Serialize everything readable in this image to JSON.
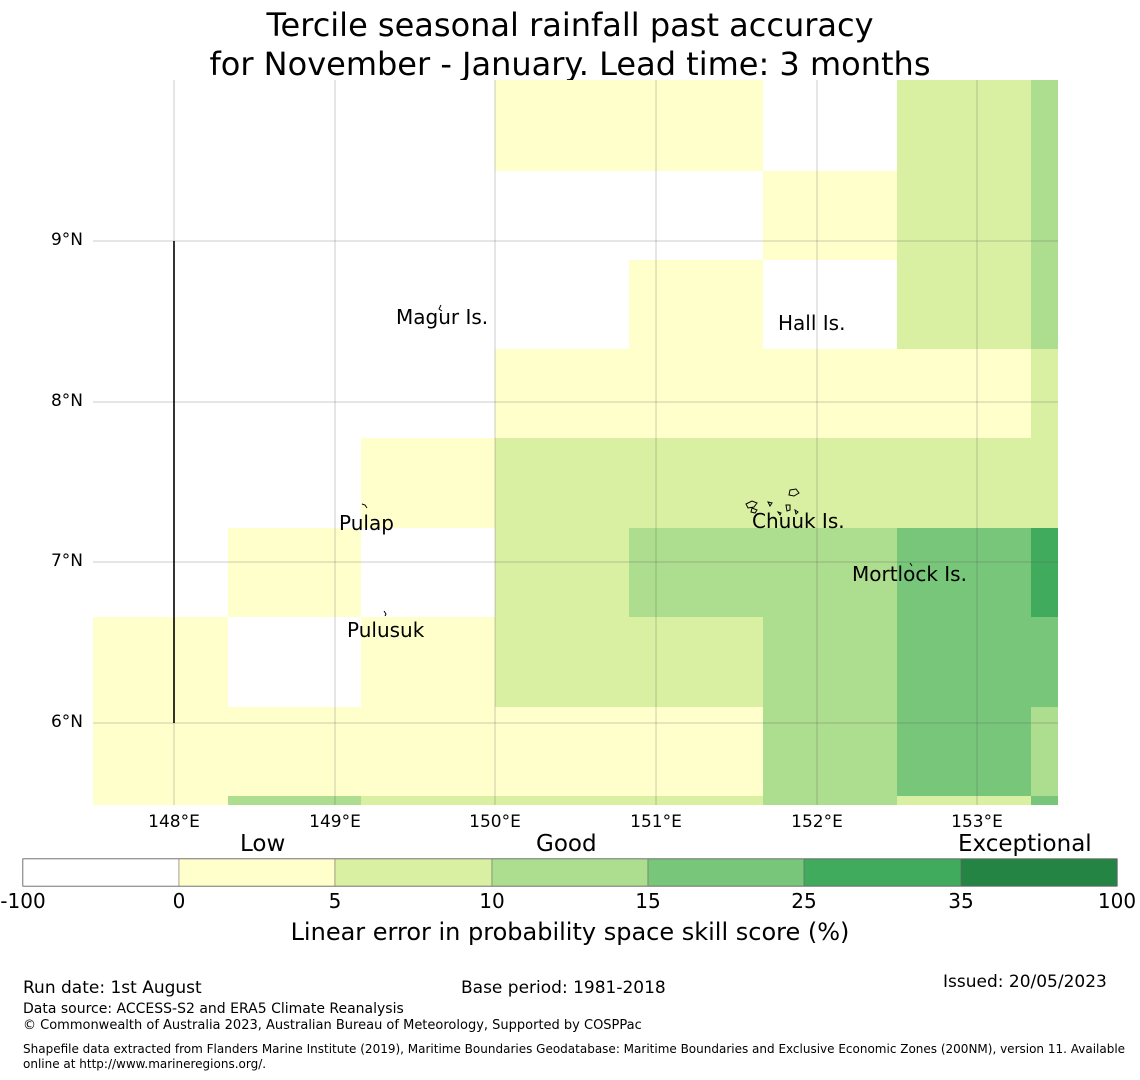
{
  "title": {
    "line1": "Tercile seasonal rainfall past accuracy",
    "line2": "for November - January. Lead time: 3 months"
  },
  "map": {
    "lon_range": [
      147.5,
      153.5
    ],
    "lat_range": [
      5.5,
      10.0
    ],
    "lon_ticks": [
      "148°E",
      "149°E",
      "150°E",
      "151°E",
      "152°E",
      "153°E"
    ],
    "lat_ticks": [
      "9°N",
      "8°N",
      "7°N",
      "6°N"
    ],
    "place_labels": [
      "Magur Is.",
      "Hall Is.",
      "Pulap",
      "Chuuk Is.",
      "Mortlock Is.",
      "Pulusuk"
    ],
    "colors": {
      "c0": "#ffffff",
      "c1": "#ffffcc",
      "c2": "#d9f0a3",
      "c3": "#addd8e",
      "c4": "#78c679",
      "c5": "#41ab5d",
      "c6": "#238443"
    }
  },
  "colorbar": {
    "categories": [
      "Low",
      "Good",
      "Exceptional"
    ],
    "ticks": [
      "-100",
      "0",
      "5",
      "10",
      "15",
      "25",
      "35",
      "100"
    ],
    "label": "Linear error in probability space skill score (%)"
  },
  "footer": {
    "run_date": "Run date: 1st August",
    "base_period": "Base period: 1981-2018",
    "issued": "Issued: 20/05/2023",
    "data_source": "Data source: ACCESS-S2 and ERA5 Climate Reanalysis",
    "copyright": "© Commonwealth of Australia 2023, Australian Bureau of Meteorology, Supported by COSPPac",
    "shapefile": "Shapefile data extracted from Flanders Marine Institute (2019), Maritime Boundaries Geodatabase: Maritime Boundaries and Exclusive Economic Zones (200NM), version 11. Available online at http://www.marineregions.org/."
  }
}
